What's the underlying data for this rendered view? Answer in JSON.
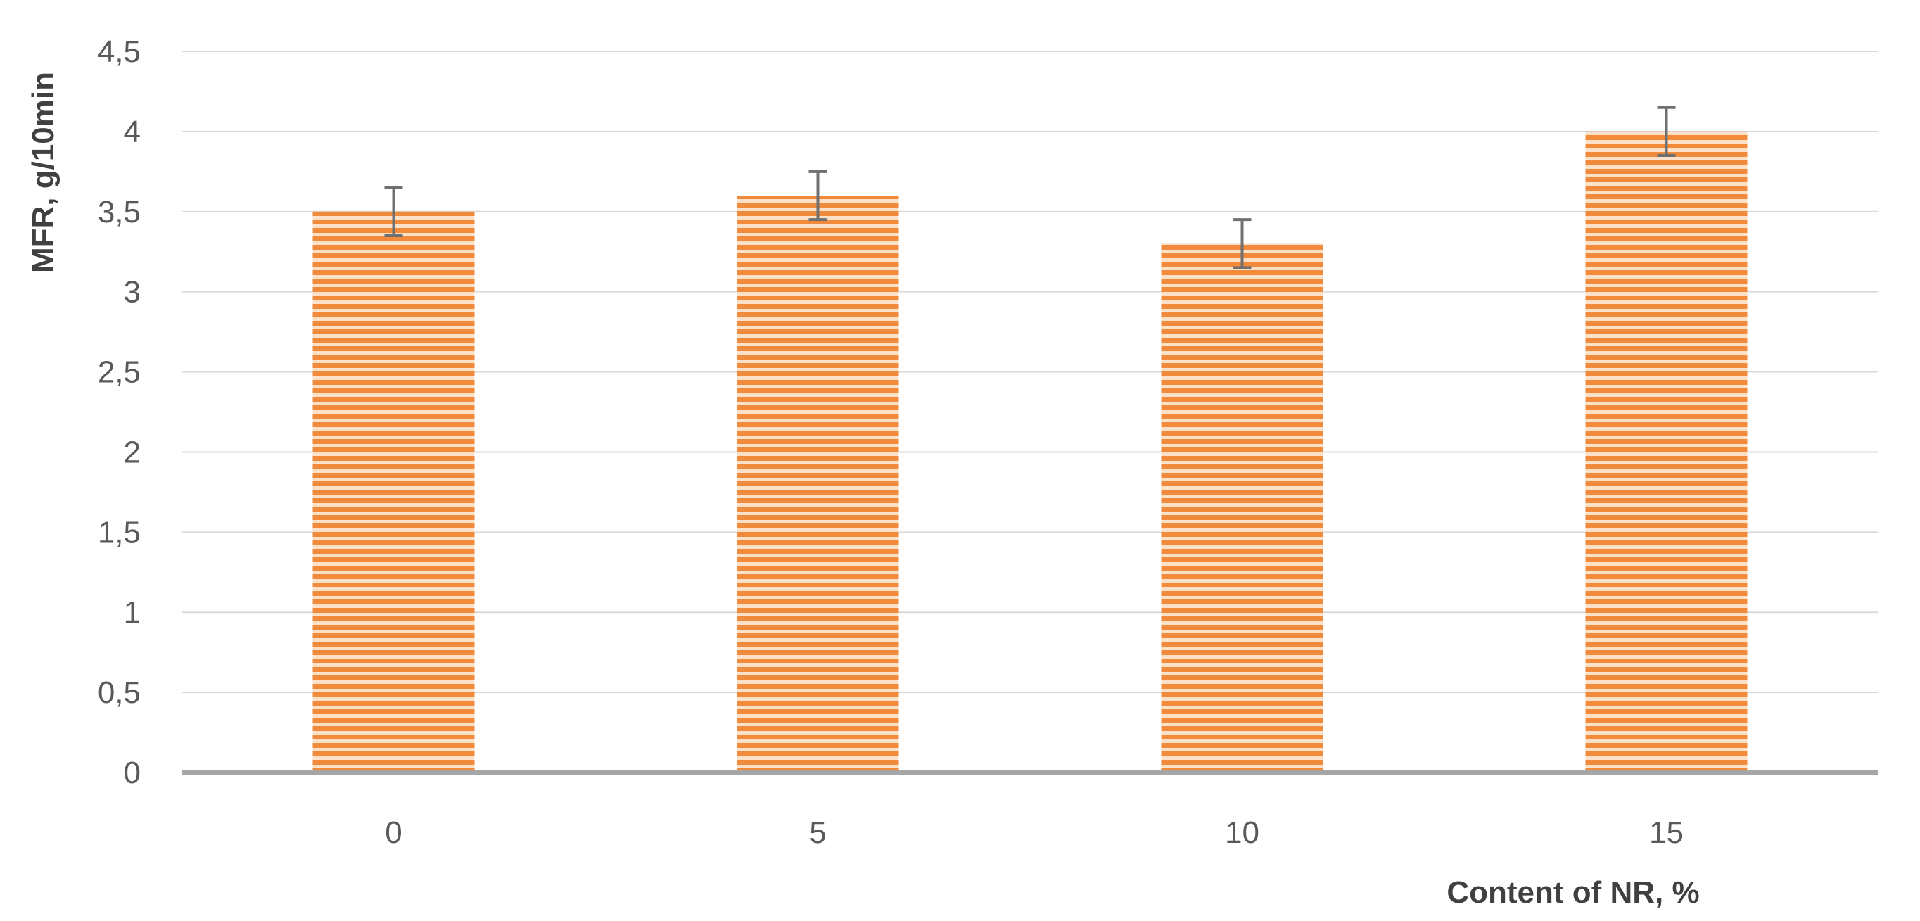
{
  "chart_data": {
    "type": "bar",
    "categories": [
      "0",
      "5",
      "10",
      "15"
    ],
    "values": [
      3.5,
      3.6,
      3.3,
      4.0
    ],
    "error": [
      0.15,
      0.15,
      0.15,
      0.15
    ],
    "xlabel": "Content of NR, %",
    "ylabel": "MFR, g/10min",
    "ylim": [
      0,
      4.5
    ],
    "yticks": [
      "0",
      "0,5",
      "1",
      "1,5",
      "2",
      "2,5",
      "3",
      "3,5",
      "4",
      "4,5"
    ],
    "grid": true,
    "legend": "none",
    "colors": {
      "bar_dark": "#f28a3c",
      "bar_light": "#fde0c8",
      "grid": "#d9d9d9",
      "baseline": "#a6a6a6",
      "error_bar": "#707070"
    }
  }
}
